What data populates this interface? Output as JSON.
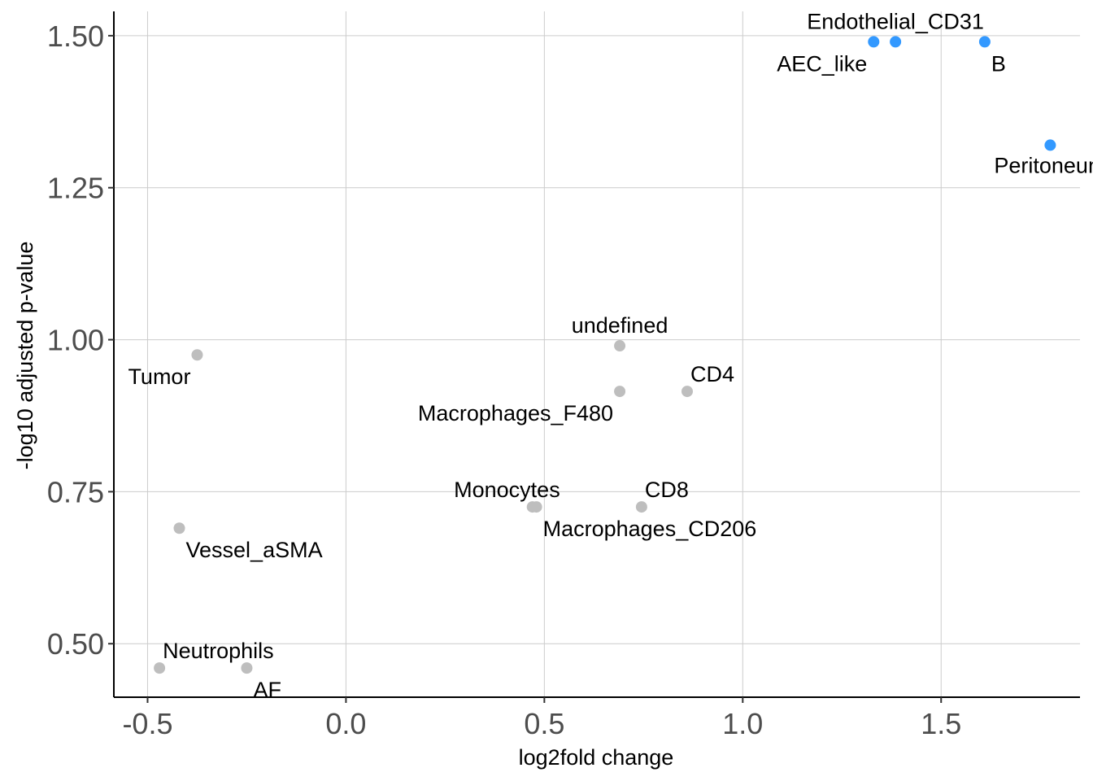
{
  "chart_data": {
    "type": "scatter",
    "title": "",
    "xlabel": "log2fold change",
    "ylabel": "-log10 adjusted p-value",
    "xlim": [
      -0.585,
      1.85
    ],
    "ylim": [
      0.412,
      1.54
    ],
    "xticks": [
      -0.5,
      0.0,
      0.5,
      1.0,
      1.5
    ],
    "xtick_labels": [
      "-0.5",
      "0.0",
      "0.5",
      "1.0",
      "1.5"
    ],
    "yticks": [
      0.5,
      0.75,
      1.0,
      1.25,
      1.5
    ],
    "ytick_labels": [
      "0.50",
      "0.75",
      "1.00",
      "1.25",
      "1.50"
    ],
    "grid": true,
    "colors": {
      "significant": "#3399ff",
      "not_significant": "#bebebe"
    },
    "points": [
      {
        "label": "Endothelial_CD31",
        "x": 1.385,
        "y": 1.49,
        "significant": true,
        "label_pos": "above"
      },
      {
        "label": "AEC_like",
        "x": 1.33,
        "y": 1.49,
        "significant": true,
        "label_pos": "below-left"
      },
      {
        "label": "B",
        "x": 1.61,
        "y": 1.49,
        "significant": true,
        "label_pos": "below-right"
      },
      {
        "label": "Peritoneum",
        "x": 1.775,
        "y": 1.32,
        "significant": true,
        "label_pos": "below"
      },
      {
        "label": "Tumor",
        "x": -0.375,
        "y": 0.975,
        "significant": false,
        "label_pos": "below-left"
      },
      {
        "label": "undefined",
        "x": 0.69,
        "y": 0.99,
        "significant": false,
        "label_pos": "above"
      },
      {
        "label": "Macrophages_F480",
        "x": 0.69,
        "y": 0.915,
        "significant": false,
        "label_pos": "below-left"
      },
      {
        "label": "CD4",
        "x": 0.86,
        "y": 0.915,
        "significant": false,
        "label_pos": "above-right"
      },
      {
        "label": "Monocytes",
        "x": 0.47,
        "y": 0.725,
        "significant": false,
        "label_pos": "above-left"
      },
      {
        "label": "Macrophages_CD206",
        "x": 0.48,
        "y": 0.725,
        "significant": false,
        "label_pos": "below-right"
      },
      {
        "label": "CD8",
        "x": 0.745,
        "y": 0.725,
        "significant": false,
        "label_pos": "above-right"
      },
      {
        "label": "Vessel_aSMA",
        "x": -0.42,
        "y": 0.69,
        "significant": false,
        "label_pos": "below-right"
      },
      {
        "label": "Neutrophils",
        "x": -0.47,
        "y": 0.46,
        "significant": false,
        "label_pos": "above-right"
      },
      {
        "label": "AF",
        "x": -0.25,
        "y": 0.46,
        "significant": false,
        "label_pos": "below-right"
      }
    ]
  }
}
